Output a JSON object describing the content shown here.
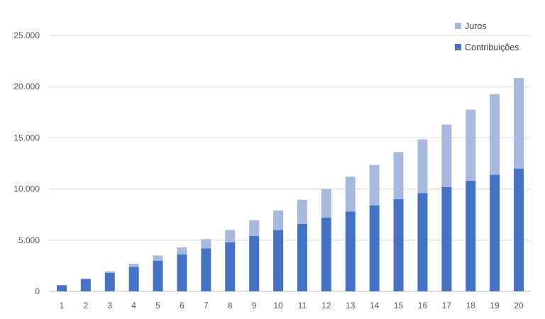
{
  "chart_data": {
    "type": "bar",
    "stacked": true,
    "title": "",
    "xlabel": "",
    "ylabel": "",
    "categories": [
      "1",
      "2",
      "3",
      "4",
      "5",
      "6",
      "7",
      "8",
      "9",
      "10",
      "11",
      "12",
      "13",
      "14",
      "15",
      "16",
      "17",
      "18",
      "19",
      "20"
    ],
    "series": [
      {
        "name": "Contribuições",
        "color": "#4472c4",
        "values": [
          600,
          1200,
          1800,
          2400,
          3000,
          3600,
          4200,
          4800,
          5400,
          6000,
          6600,
          7200,
          7800,
          8400,
          9000,
          9600,
          10200,
          10800,
          11400,
          12000
        ]
      },
      {
        "name": "Juros",
        "color": "#a9b8de",
        "values": [
          0,
          50,
          150,
          300,
          500,
          700,
          900,
          1200,
          1550,
          1900,
          2350,
          2800,
          3400,
          3950,
          4600,
          5250,
          6100,
          6950,
          7850,
          8850
        ]
      }
    ],
    "ylim": [
      0,
      25000
    ],
    "yticks": [
      0,
      5000,
      10000,
      15000,
      20000,
      25000
    ],
    "ytick_labels": [
      "0",
      "5.000",
      "10.000",
      "15.000",
      "20.000",
      "25.000"
    ],
    "grid": true,
    "legend": {
      "position": "top-right",
      "entries": [
        {
          "label": "Juros",
          "color": "#a9b8de"
        },
        {
          "label": "Contribuições",
          "color": "#4472c4"
        }
      ]
    }
  }
}
